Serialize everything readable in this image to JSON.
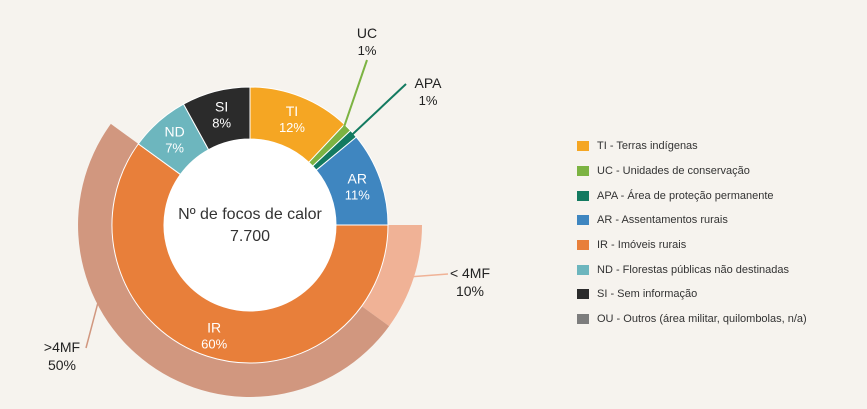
{
  "chart_data": {
    "type": "pie",
    "center": {
      "title": "Nº de focos de calor",
      "value": "7.700"
    },
    "slices": [
      {
        "code": "TI",
        "label": "TI",
        "pct": "12%",
        "value": 12,
        "color": "#f5a623",
        "legend": "TI - Terras indígenas"
      },
      {
        "code": "UC",
        "label": "UC",
        "pct": "1%",
        "value": 1,
        "color": "#7cb342",
        "legend": "UC - Unidades de conservação"
      },
      {
        "code": "APA",
        "label": "APA",
        "pct": "1%",
        "value": 1,
        "color": "#137a60",
        "legend": "APA - Área de proteção permanente"
      },
      {
        "code": "AR",
        "label": "AR",
        "pct": "11%",
        "value": 11,
        "color": "#3f86c0",
        "legend": "AR - Assentamentos rurais"
      },
      {
        "code": "IR",
        "label": "IR",
        "pct": "60%",
        "value": 60,
        "color": "#e87f3a",
        "legend": "IR - Imóveis rurais"
      },
      {
        "code": "ND",
        "label": "ND",
        "pct": "7%",
        "value": 7,
        "color": "#6db6be",
        "legend": "ND - Florestas públicas não destinadas"
      },
      {
        "code": "SI",
        "label": "SI",
        "pct": "8%",
        "value": 8,
        "color": "#2b2b2b",
        "legend": "SI - Sem informação"
      }
    ],
    "legend_extra": [
      {
        "legend": "OU - Outros (área militar, quilombolas, n/a)",
        "color": "#7d7d7d"
      }
    ],
    "ir_breakdown": [
      {
        "label": "< 4MF",
        "pct": "10%",
        "value": 10,
        "color": "#f0b296"
      },
      {
        "label": ">4MF",
        "pct": "50%",
        "value": 50,
        "color": "#d1977f"
      }
    ]
  }
}
